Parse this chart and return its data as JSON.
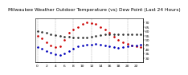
{
  "title": "Milwaukee Weather Outdoor Temperature (vs) Dew Point (Last 24 Hours)",
  "title2": "Last 24 Hours",
  "temp": [
    55,
    52,
    48,
    44,
    42,
    43,
    50,
    58,
    62,
    65,
    68,
    70,
    69,
    68,
    65,
    62,
    58,
    54,
    50,
    48,
    46,
    44,
    43,
    42
  ],
  "dew": [
    42,
    40,
    38,
    36,
    34,
    33,
    35,
    38,
    40,
    43,
    44,
    45,
    45,
    46,
    45,
    44,
    43,
    42,
    41,
    42,
    43,
    44,
    44,
    45
  ],
  "indoor": [
    60,
    59,
    58,
    57,
    56,
    55,
    54,
    54,
    53,
    53,
    53,
    53,
    54,
    55,
    56,
    57,
    57,
    57,
    57,
    57,
    57,
    57,
    57,
    57
  ],
  "ylim": [
    25,
    75
  ],
  "yticks_right": [
    30,
    35,
    40,
    45,
    50,
    55,
    60,
    65,
    70
  ],
  "temp_color": "#cc0000",
  "dew_color": "#0000bb",
  "indoor_color": "#333333",
  "bg_color": "#ffffff",
  "grid_color": "#999999",
  "title_fontsize": 4.2,
  "tick_fontsize": 3.2,
  "marker_size": 1.8,
  "n_points": 24,
  "grid_every": 4
}
